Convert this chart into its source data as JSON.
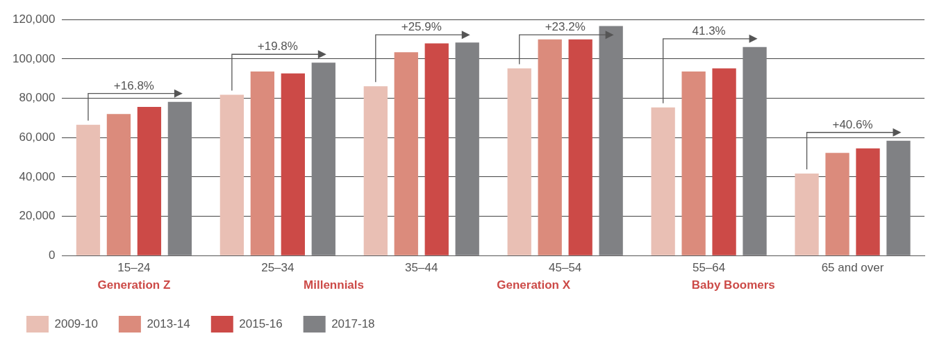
{
  "chart_data": {
    "type": "bar",
    "categories": [
      "15–24",
      "25–34",
      "35–44",
      "45–54",
      "55–64",
      "65 and over"
    ],
    "series": [
      {
        "name": "2009-10",
        "color": "#e9bfb4",
        "values": [
          66500,
          81800,
          86100,
          95200,
          75300,
          41700
        ]
      },
      {
        "name": "2013-14",
        "color": "#db8b7c",
        "values": [
          72000,
          93600,
          103400,
          109900,
          93600,
          52200
        ]
      },
      {
        "name": "2015-16",
        "color": "#cc4a47",
        "values": [
          75600,
          92600,
          107900,
          109900,
          95200,
          54500
        ]
      },
      {
        "name": "2017-18",
        "color": "#808184",
        "values": [
          78200,
          98100,
          108300,
          116700,
          106000,
          58400
        ]
      }
    ],
    "ylim": [
      0,
      120000
    ],
    "yticks": [
      0,
      {
        "value": 20000,
        "label": "20,000"
      },
      {
        "value": 40000,
        "label": "40,000"
      },
      {
        "value": 60000,
        "label": "60,000"
      },
      {
        "value": 80000,
        "label": "80,000"
      },
      {
        "value": 100000,
        "label": "100,000"
      },
      {
        "value": 120000,
        "label": "120,000"
      }
    ],
    "grid": "y",
    "legend": "bottom left",
    "annotations": [
      "+16.8%",
      "+19.8%",
      "+25.9%",
      "+23.2%",
      "41.3%",
      "+40.6%",
      "Generation Z",
      "Millennials",
      "Generation X",
      "Baby Boomers"
    ]
  }
}
